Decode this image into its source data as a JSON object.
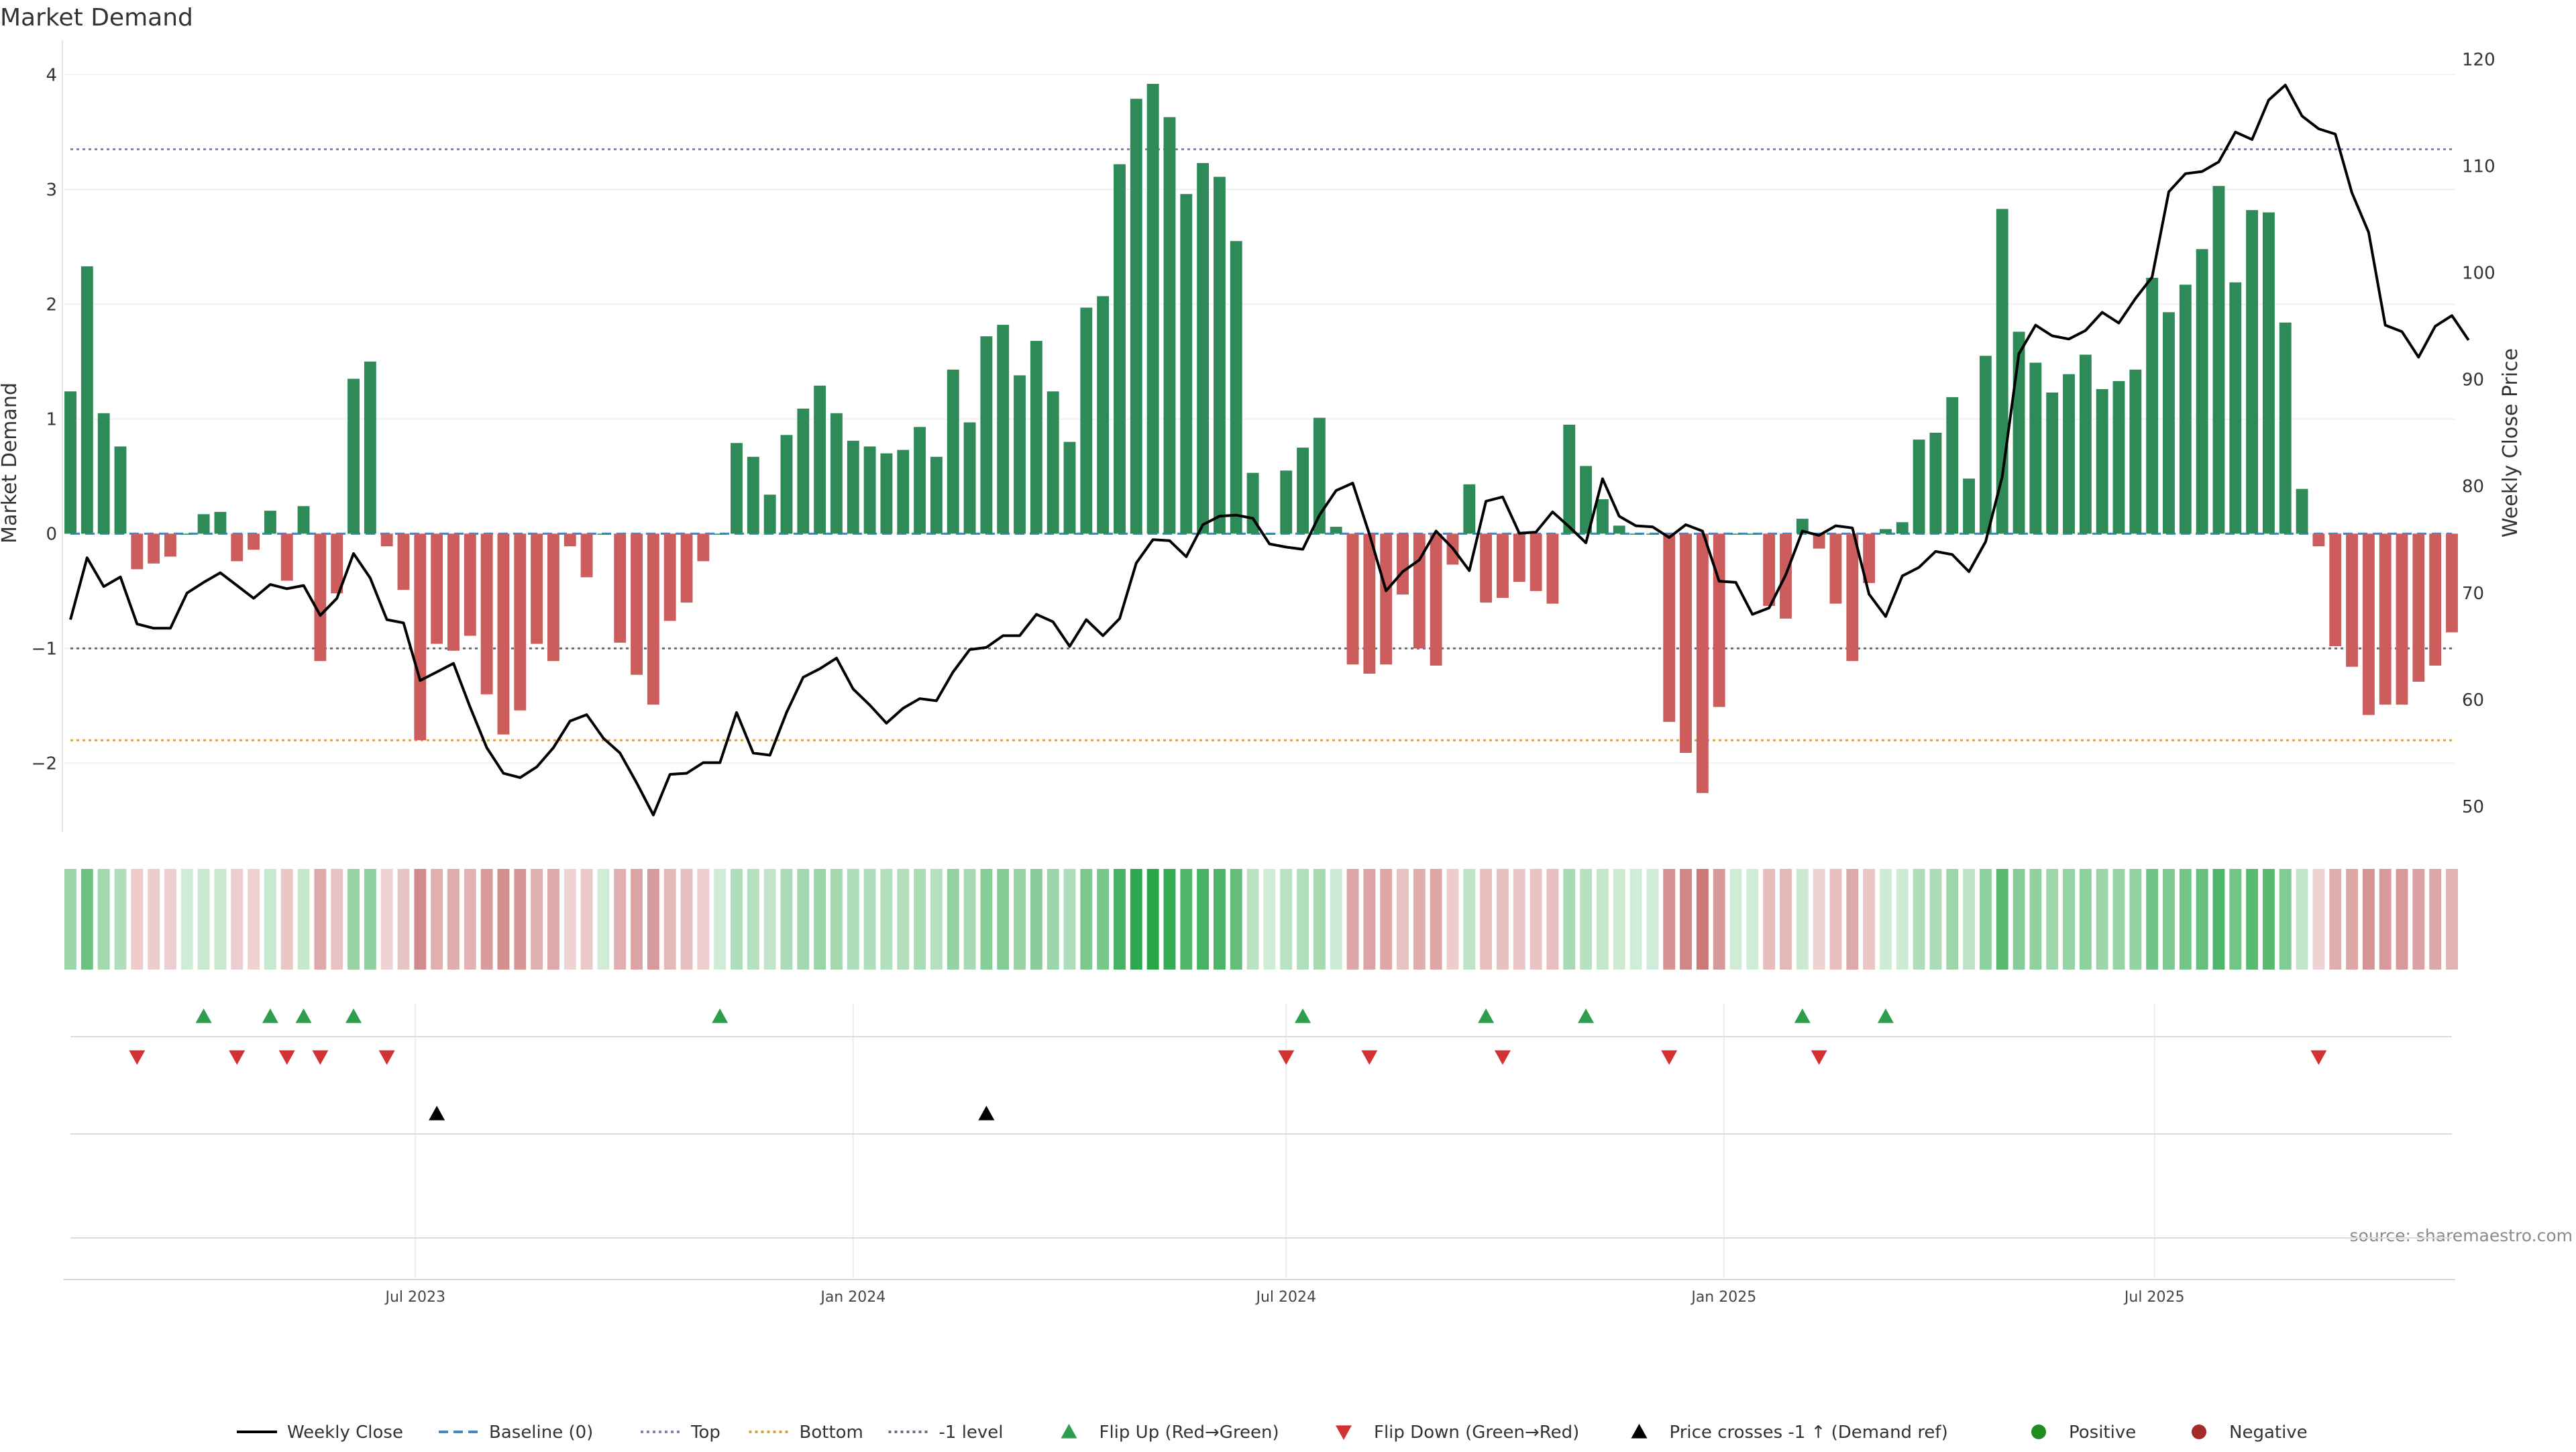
{
  "chart_data": {
    "type": "bar",
    "title": "Market Demand",
    "ylabel": "Market Demand",
    "y2label": "Weekly Close Price",
    "ylim": [
      -2.6,
      4.3
    ],
    "y2lim": [
      47.6,
      121.8
    ],
    "yticks": [
      4,
      3,
      2,
      1,
      0,
      -1,
      -2
    ],
    "ytick_labels": [
      "4",
      "3",
      "2",
      "1",
      "0",
      "−1",
      "−2"
    ],
    "y2ticks": [
      120,
      110,
      100,
      90,
      80,
      70,
      60,
      50
    ],
    "xlabels": [
      {
        "date": "2023-07-01",
        "label": "Jul 2023"
      },
      {
        "date": "2024-01-01",
        "label": "Jan 2024"
      },
      {
        "date": "2024-07-01",
        "label": "Jul 2024"
      },
      {
        "date": "2025-01-01",
        "label": "Jan 2025"
      },
      {
        "date": "2025-07-01",
        "label": "Jul 2025"
      }
    ],
    "week_start": "2023-02-06",
    "demand": [
      1.24,
      2.33,
      1.05,
      0.76,
      -0.31,
      -0.26,
      -0.2,
      0,
      0.17,
      0.19,
      -0.24,
      -0.14,
      0.2,
      -0.41,
      0.24,
      -1.11,
      -0.52,
      1.35,
      1.5,
      -0.11,
      -0.49,
      -1.8,
      -0.96,
      -1.02,
      -0.89,
      -1.4,
      -1.75,
      -1.54,
      -0.96,
      -1.11,
      -0.11,
      -0.38,
      0,
      -0.95,
      -1.23,
      -1.49,
      -0.76,
      -0.6,
      -0.24,
      0,
      0.79,
      0.67,
      0.34,
      0.86,
      1.09,
      1.29,
      1.05,
      0.81,
      0.76,
      0.7,
      0.73,
      0.93,
      0.67,
      1.43,
      0.97,
      1.72,
      1.82,
      1.38,
      1.68,
      1.24,
      0.8,
      1.97,
      2.07,
      3.22,
      3.79,
      3.92,
      3.63,
      2.96,
      3.23,
      3.11,
      2.55,
      0.53,
      0,
      0.55,
      0.75,
      1.01,
      0.06,
      -1.14,
      -1.22,
      -1.14,
      -0.53,
      -1.0,
      -1.15,
      -0.27,
      0.43,
      -0.6,
      -0.56,
      -0.42,
      -0.5,
      -0.61,
      0.95,
      0.59,
      0.3,
      0.07,
      0,
      0,
      -1.64,
      -1.91,
      -2.26,
      -1.51,
      0,
      0,
      -0.63,
      -0.74,
      0.13,
      -0.13,
      -0.61,
      -1.11,
      -0.43,
      0.04,
      0.1,
      0.82,
      0.88,
      1.19,
      0.48,
      1.55,
      2.83,
      1.76,
      1.49,
      1.23,
      1.39,
      1.56,
      1.26,
      1.33,
      1.43,
      2.23,
      1.93,
      2.17,
      2.48,
      3.03,
      2.19,
      2.82,
      2.8,
      1.84,
      0.39,
      -0.11,
      -0.98,
      -1.16,
      -1.58,
      -1.49,
      -1.49,
      -1.29,
      -1.15,
      -0.86
    ],
    "close": [
      67.5,
      73.3,
      70.6,
      71.5,
      67.1,
      66.7,
      66.7,
      70.0,
      71.0,
      71.9,
      70.7,
      69.5,
      70.8,
      70.4,
      70.7,
      67.9,
      69.5,
      73.7,
      71.4,
      67.5,
      67.2,
      61.8,
      62.6,
      63.4,
      59.3,
      55.5,
      53.1,
      52.7,
      53.7,
      55.5,
      58.0,
      58.6,
      56.4,
      55.0,
      52.2,
      49.2,
      53.0,
      53.1,
      54.1,
      54.1,
      58.8,
      55.0,
      54.8,
      58.8,
      62.1,
      62.9,
      63.9,
      61.0,
      59.5,
      57.8,
      59.2,
      60.1,
      59.9,
      62.6,
      64.7,
      64.9,
      66.0,
      66.0,
      68.0,
      67.3,
      65.0,
      67.5,
      66.0,
      67.6,
      72.8,
      75.0,
      74.9,
      73.4,
      76.4,
      77.2,
      77.3,
      77.0,
      74.6,
      74.3,
      74.1,
      77.3,
      79.6,
      80.3,
      75.5,
      70.2,
      72.0,
      73.1,
      75.8,
      74.2,
      72.1,
      78.6,
      79.0,
      75.6,
      75.7,
      77.6,
      76.2,
      74.7,
      80.7,
      77.2,
      76.3,
      76.2,
      75.2,
      76.4,
      75.8,
      71.1,
      71.0,
      68.0,
      68.6,
      71.7,
      75.8,
      75.4,
      76.3,
      76.1,
      69.9,
      67.8,
      71.6,
      72.4,
      73.9,
      73.6,
      72.0,
      74.8,
      80.9,
      92.4,
      95.1,
      94.1,
      93.8,
      94.6,
      96.3,
      95.3,
      97.6,
      99.6,
      107.6,
      109.3,
      109.5,
      110.4,
      113.2,
      112.5,
      116.2,
      117.6,
      114.7,
      113.5,
      113.0,
      107.5,
      103.8,
      95.1,
      94.5,
      92.1,
      95.0,
      96.0,
      93.7
    ],
    "reference_lines": [
      {
        "name": "Top",
        "value": 3.35,
        "color": "#8a7fb5",
        "dash": "dotted"
      },
      {
        "name": "-1 level",
        "value": -1.0,
        "color": "#6b6b8a",
        "dash": "dotted"
      },
      {
        "name": "Bottom",
        "value": -1.8,
        "color": "#d9a33b",
        "dash": "dotted"
      },
      {
        "name": "Baseline (0)",
        "value": 0,
        "color": "#4a86c5",
        "dash": "dashed"
      }
    ],
    "flip_up": [
      8,
      12,
      14,
      17,
      39,
      74,
      85,
      91,
      104,
      109
    ],
    "flip_down": [
      4,
      10,
      13,
      15,
      19,
      73,
      78,
      86,
      96,
      105,
      135
    ],
    "price_cross": [
      22,
      55
    ],
    "colors": {
      "positive": "#2e8b57",
      "negative": "#cd5c5c",
      "line": "#000000",
      "flip_up": "#2e9e4e",
      "flip_down": "#d23232",
      "cross": "#000000",
      "pos_dot": "#228b22",
      "neg_dot": "#a52a2a"
    },
    "legend": [
      {
        "label": "Weekly Close",
        "kind": "line",
        "color": "#000000"
      },
      {
        "label": "Baseline (0)",
        "kind": "dashed",
        "color": "#4a86c5"
      },
      {
        "label": "Top",
        "kind": "dotted",
        "color": "#8a7fb5"
      },
      {
        "label": "Bottom",
        "kind": "dotted",
        "color": "#d9a33b"
      },
      {
        "label": "-1 level",
        "kind": "dotted",
        "color": "#6b6b8a"
      },
      {
        "label": "Flip Up (Red→Green)",
        "kind": "tri-up",
        "color": "#2e9e4e"
      },
      {
        "label": "Flip Down (Green→Red)",
        "kind": "tri-down",
        "color": "#d23232"
      },
      {
        "label": "Price crosses -1 ↑ (Demand ref)",
        "kind": "tri-up",
        "color": "#000000"
      },
      {
        "label": "Positive",
        "kind": "dot",
        "color": "#228b22"
      },
      {
        "label": "Negative",
        "kind": "dot",
        "color": "#a52a2a"
      }
    ],
    "legend_position": "bottom-center",
    "source": "source: sharemaestro.com"
  }
}
